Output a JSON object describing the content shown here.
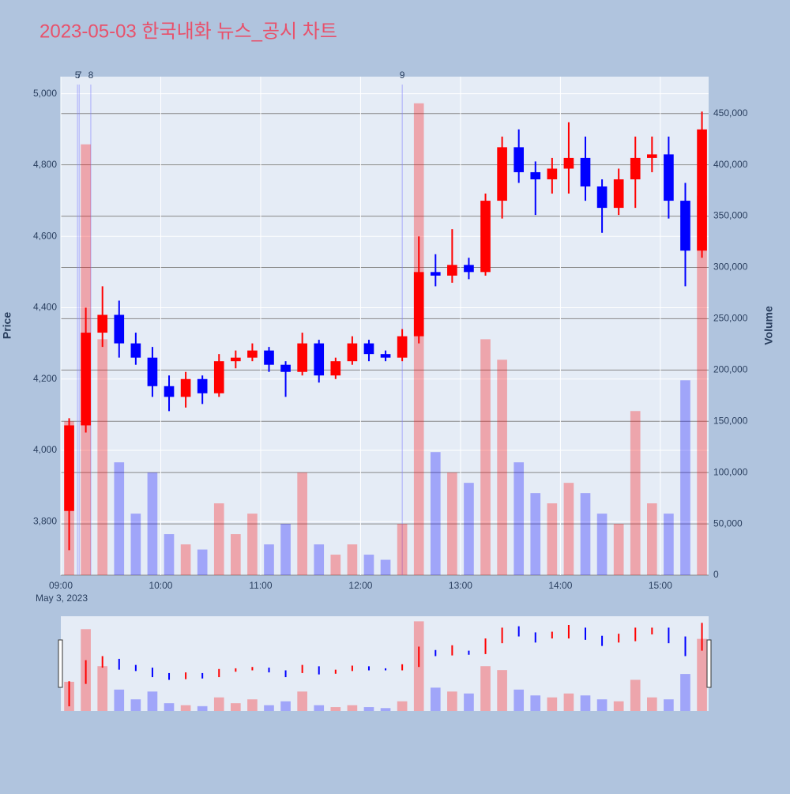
{
  "chart_data": {
    "type": "candlestick",
    "title": "2023-05-03 한국내화 뉴스_공시 차트",
    "y_label": "Price",
    "y2_label": "Volume",
    "x_sub_label": "May 3, 2023",
    "increasing_color": "#ff0000",
    "decreasing_color": "#0000ff",
    "xlim": [
      "2023-05-03 09:00",
      "2023-05-03 15:29"
    ],
    "xticks": [
      {
        "value": "2023-05-03 09:00",
        "label": "09:00"
      },
      {
        "value": "2023-05-03 10:00",
        "label": "10:00"
      },
      {
        "value": "2023-05-03 11:00",
        "label": "11:00"
      },
      {
        "value": "2023-05-03 12:00",
        "label": "12:00"
      },
      {
        "value": "2023-05-03 13:00",
        "label": "13:00"
      },
      {
        "value": "2023-05-03 14:00",
        "label": "14:00"
      },
      {
        "value": "2023-05-03 15:00",
        "label": "15:00"
      }
    ],
    "ylim": [
      3650,
      5048
    ],
    "yticks": [
      {
        "value": 3800,
        "label": "3,800"
      },
      {
        "value": 4000,
        "label": "4,000"
      },
      {
        "value": 4200,
        "label": "4,200"
      },
      {
        "value": 4400,
        "label": "4,400"
      },
      {
        "value": 4600,
        "label": "4,600"
      },
      {
        "value": 4800,
        "label": "4,800"
      },
      {
        "value": 5000,
        "label": "5,000"
      }
    ],
    "y2lim": [
      0,
      486000
    ],
    "y2ticks": [
      0,
      {
        "value": 50000,
        "label": "50,000"
      },
      {
        "value": 100000,
        "label": "100,000"
      },
      {
        "value": 150000,
        "label": "150,000"
      },
      {
        "value": 200000,
        "label": "200,000"
      },
      {
        "value": 250000,
        "label": "250,000"
      },
      {
        "value": 300000,
        "label": "300,000"
      },
      {
        "value": 350000,
        "label": "350,000"
      },
      {
        "value": 400000,
        "label": "400,000"
      },
      {
        "value": 450000,
        "label": "450,000"
      }
    ],
    "annotations": [
      {
        "x": "2023-05-03 09:10",
        "text": "5"
      },
      {
        "x": "2023-05-03 09:11",
        "text": "7"
      },
      {
        "x": "2023-05-03 09:18",
        "text": "8"
      },
      {
        "x": "2023-05-03 12:25",
        "text": "9"
      }
    ],
    "x": [
      "2023-05-03 09:00",
      "2023-05-03 09:10",
      "2023-05-03 09:20",
      "2023-05-03 09:30",
      "2023-05-03 09:40",
      "2023-05-03 09:50",
      "2023-05-03 10:00",
      "2023-05-03 10:10",
      "2023-05-03 10:20",
      "2023-05-03 10:30",
      "2023-05-03 10:40",
      "2023-05-03 10:50",
      "2023-05-03 11:00",
      "2023-05-03 11:10",
      "2023-05-03 11:20",
      "2023-05-03 11:30",
      "2023-05-03 11:40",
      "2023-05-03 11:50",
      "2023-05-03 12:00",
      "2023-05-03 12:10",
      "2023-05-03 12:20",
      "2023-05-03 12:30",
      "2023-05-03 12:40",
      "2023-05-03 12:50",
      "2023-05-03 13:00",
      "2023-05-03 13:10",
      "2023-05-03 13:20",
      "2023-05-03 13:30",
      "2023-05-03 13:40",
      "2023-05-03 13:50",
      "2023-05-03 14:00",
      "2023-05-03 14:10",
      "2023-05-03 14:20",
      "2023-05-03 14:30",
      "2023-05-03 14:40",
      "2023-05-03 14:50",
      "2023-05-03 15:00",
      "2023-05-03 15:10",
      "2023-05-03 15:20"
    ],
    "open": [
      3830,
      4070,
      4330,
      4380,
      4300,
      4260,
      4180,
      4150,
      4200,
      4160,
      4250,
      4260,
      4280,
      4240,
      4220,
      4300,
      4210,
      4250,
      4300,
      4270,
      4260,
      4320,
      4500,
      4490,
      4520,
      4500,
      4700,
      4850,
      4780,
      4760,
      4790,
      4820,
      4740,
      4680,
      4760,
      4820,
      4830,
      4700,
      4560
    ],
    "high": [
      4090,
      4400,
      4460,
      4420,
      4330,
      4290,
      4210,
      4220,
      4210,
      4270,
      4280,
      4300,
      4290,
      4250,
      4330,
      4310,
      4260,
      4320,
      4310,
      4280,
      4340,
      4600,
      4550,
      4620,
      4540,
      4720,
      4880,
      4900,
      4810,
      4820,
      4920,
      4880,
      4760,
      4790,
      4880,
      4880,
      4880,
      4750,
      4950
    ],
    "low": [
      3720,
      4050,
      4290,
      4260,
      4240,
      4150,
      4110,
      4120,
      4130,
      4150,
      4230,
      4250,
      4220,
      4150,
      4210,
      4190,
      4200,
      4240,
      4250,
      4250,
      4250,
      4300,
      4460,
      4470,
      4480,
      4490,
      4650,
      4750,
      4660,
      4720,
      4720,
      4700,
      4610,
      4660,
      4680,
      4780,
      4650,
      4460,
      4540
    ],
    "close": [
      4070,
      4330,
      4380,
      4300,
      4260,
      4180,
      4150,
      4200,
      4160,
      4250,
      4260,
      4280,
      4240,
      4220,
      4300,
      4210,
      4250,
      4300,
      4270,
      4260,
      4320,
      4500,
      4490,
      4520,
      4500,
      4700,
      4850,
      4780,
      4760,
      4790,
      4820,
      4740,
      4680,
      4760,
      4820,
      4830,
      4700,
      4560,
      4900
    ],
    "volume": [
      150000,
      420000,
      230000,
      110000,
      60000,
      100000,
      40000,
      30000,
      25000,
      70000,
      40000,
      60000,
      30000,
      50000,
      100000,
      30000,
      20000,
      30000,
      20000,
      15000,
      50000,
      460000,
      120000,
      100000,
      90000,
      230000,
      210000,
      110000,
      80000,
      70000,
      90000,
      80000,
      60000,
      50000,
      160000,
      70000,
      60000,
      190000,
      370000
    ]
  }
}
